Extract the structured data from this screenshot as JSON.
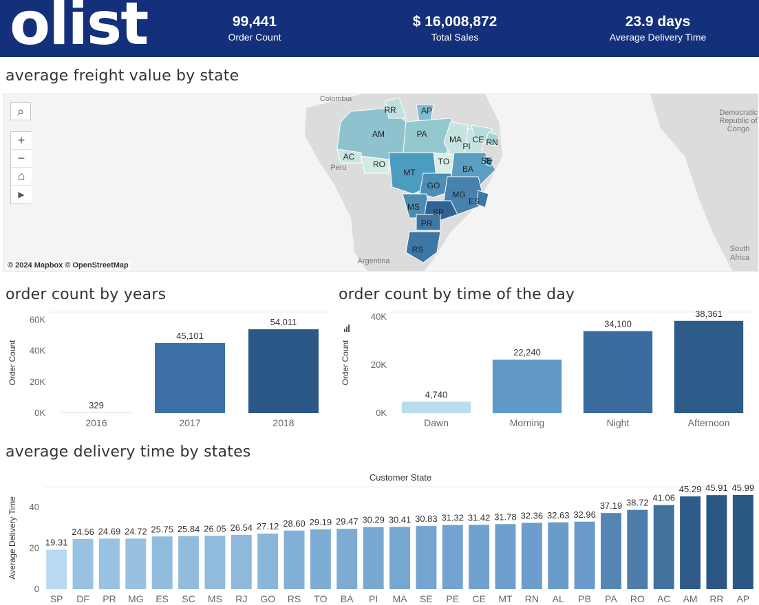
{
  "header": {
    "logo": "olist",
    "kpis": [
      {
        "value": "99,441",
        "label": "Order Count"
      },
      {
        "value": "$ 16,008,872",
        "label": "Total Sales"
      },
      {
        "value": "23.9 days",
        "label": "Average Delivery Time"
      }
    ],
    "background": "#14307a"
  },
  "titles": {
    "freight": "average freight value by state",
    "years": "order count by years",
    "timeofday": "order count by time of the day",
    "delivery": "average delivery time by states"
  },
  "map": {
    "attribution": "© 2024 Mapbox  © OpenStreetMap",
    "tools": [
      "search-icon",
      "plus-icon",
      "minus-icon",
      "home-icon",
      "play-icon"
    ],
    "place_labels": [
      "Colombia",
      "Peru",
      "Argentina",
      "Democratic Republic of Congo",
      "South Africa"
    ],
    "place_lines": {
      "congo": [
        "Democratic",
        "Republic of",
        "Congo"
      ],
      "safrica": [
        "South",
        "Africa"
      ]
    },
    "states": [
      "RR",
      "AP",
      "AM",
      "PA",
      "MA",
      "CE",
      "RN",
      "PI",
      "AC",
      "RO",
      "TO",
      "SE",
      "MT",
      "BA",
      "GO",
      "MG",
      "ES",
      "MS",
      "SP",
      "PR",
      "RS"
    ]
  },
  "chart_data": [
    {
      "type": "bar",
      "title": "order count by years",
      "categories": [
        "2016",
        "2017",
        "2018"
      ],
      "values": [
        329,
        45101,
        54011
      ],
      "labels": [
        "329",
        "45,101",
        "54,011"
      ],
      "ylabel": "Order Count",
      "ylim": [
        0,
        65000
      ],
      "yticks": [
        0,
        20000,
        40000,
        60000
      ],
      "ytick_labels": [
        "0K",
        "20K",
        "40K",
        "60K"
      ]
    },
    {
      "type": "bar",
      "title": "order count by time of the day",
      "categories": [
        "Dawn",
        "Morning",
        "Night",
        "Afternoon"
      ],
      "values": [
        4740,
        22240,
        34100,
        38361
      ],
      "labels": [
        "4,740",
        "22,240",
        "34,100",
        "38,361"
      ],
      "ylabel": "Order Count",
      "ylim": [
        0,
        42000
      ],
      "yticks": [
        0,
        20000,
        40000
      ],
      "ytick_labels": [
        "0K",
        "20K",
        "40K"
      ]
    },
    {
      "type": "bar",
      "title": "average delivery time by states",
      "xlabel": "Customer State",
      "ylabel": "Average Delivery Time",
      "categories": [
        "SP",
        "DF",
        "PR",
        "MG",
        "ES",
        "SC",
        "MS",
        "RJ",
        "GO",
        "RS",
        "TO",
        "BA",
        "PI",
        "MA",
        "SE",
        "PE",
        "CE",
        "MT",
        "RN",
        "AL",
        "PB",
        "PA",
        "RO",
        "AC",
        "AM",
        "RR",
        "AP"
      ],
      "values": [
        19.31,
        24.56,
        24.69,
        24.72,
        25.75,
        25.84,
        26.05,
        26.54,
        27.12,
        28.6,
        29.19,
        29.47,
        30.29,
        30.41,
        30.83,
        31.32,
        31.42,
        31.78,
        32.36,
        32.63,
        32.96,
        37.19,
        38.72,
        41.06,
        45.29,
        45.91,
        45.99
      ],
      "labels": [
        "19.31",
        "24.56",
        "24.69",
        "24.72",
        "25.75",
        "25.84",
        "26.05",
        "26.54",
        "27.12",
        "28.60",
        "29.19",
        "29.47",
        "30.29",
        "30.41",
        "30.83",
        "31.32",
        "31.42",
        "31.78",
        "32.36",
        "32.63",
        "32.96",
        "37.19",
        "38.72",
        "41.06",
        "45.29",
        "45.91",
        "45.99"
      ],
      "ylim": [
        0,
        50
      ],
      "yticks": [
        0,
        20,
        40
      ]
    }
  ]
}
